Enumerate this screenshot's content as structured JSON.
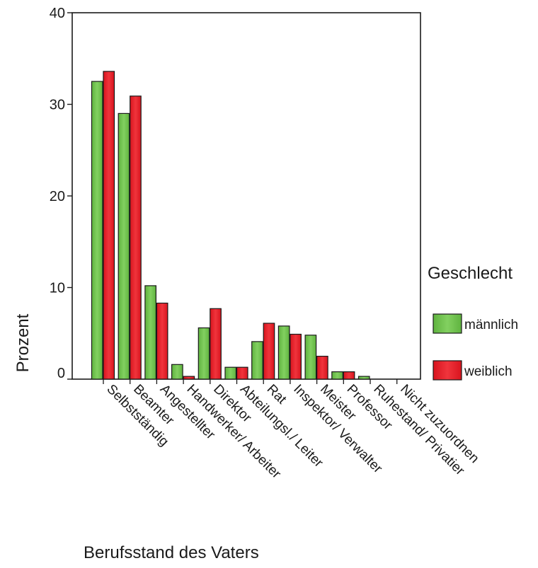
{
  "chart_data": {
    "type": "bar",
    "title": "",
    "xlabel": "Berufsstand des Vaters",
    "ylabel": "Prozent",
    "ylim": [
      0,
      40
    ],
    "yticks": [
      0,
      10,
      20,
      30,
      40
    ],
    "grid": false,
    "legend_position": "right",
    "categories": [
      "Selbstständig",
      "Beamter",
      "Angestellter",
      "Handwerker/ Arbeiter",
      "Direktor",
      "Abteilungsl./ Leiter",
      "Rat",
      "Inspektor/ Verwalter",
      "Meister",
      "Professor",
      "Ruhestand/ Privatier",
      "Nicht zuzuordnen"
    ],
    "series": [
      {
        "name": "männlich",
        "color": "#6dc24b",
        "values": [
          32.5,
          29.0,
          10.2,
          1.6,
          5.6,
          1.3,
          4.1,
          5.8,
          4.8,
          0.8,
          0.3,
          0.0
        ]
      },
      {
        "name": "weiblich",
        "color": "#e8202a",
        "values": [
          33.6,
          30.9,
          8.3,
          0.3,
          7.7,
          1.3,
          6.1,
          4.9,
          2.5,
          0.8,
          0.0,
          0.0
        ]
      }
    ]
  },
  "legend": {
    "title": "Geschlecht"
  }
}
